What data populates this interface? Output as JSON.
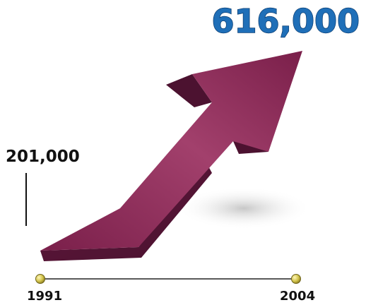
{
  "chart_data": {
    "type": "line",
    "x": [
      "1991",
      "2004"
    ],
    "values": [
      201000,
      616000
    ],
    "data_labels": [
      "201,000",
      "616,000"
    ],
    "tick_labels": [
      "1991",
      "2004"
    ],
    "colors": {
      "arrow": "#8e2d5a",
      "arrow_dark": "#5f173a",
      "value_text": "#1f6fb8",
      "baseline": "#222222",
      "markers": "#d1c34a"
    }
  }
}
